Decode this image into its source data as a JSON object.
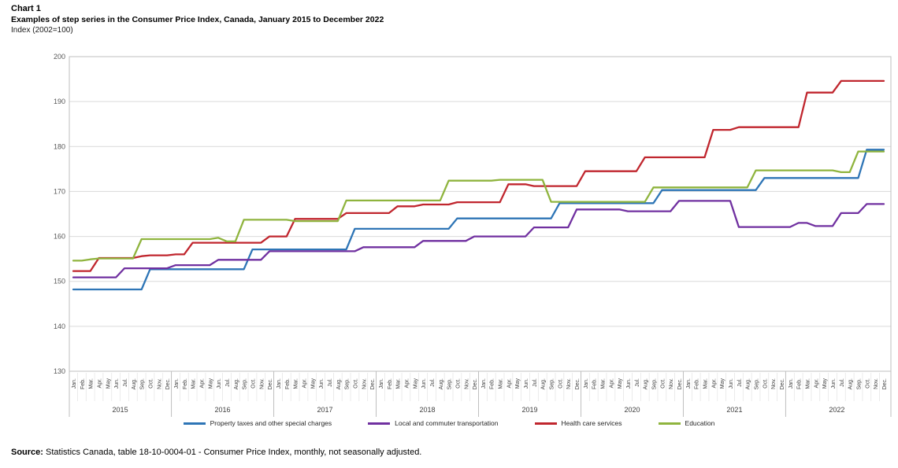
{
  "header": {
    "chart_label": "Chart 1",
    "title": "Examples of step series in the Consumer Price Index, Canada, January 2015 to December 2022",
    "index_note": "Index (2002=100)"
  },
  "footer": {
    "source_label": "Source:",
    "source_text": "Statistics Canada, table 18-10-0004-01 - Consumer Price Index, monthly, not seasonally adjusted."
  },
  "chart_data": {
    "type": "line",
    "step_style": true,
    "title": "Examples of step series in the Consumer Price Index, Canada, January 2015 to December 2022",
    "ylabel": "Index (2002=100)",
    "xlabel": "",
    "ylim": [
      130,
      200
    ],
    "yticks": [
      130,
      140,
      150,
      160,
      170,
      180,
      190,
      200
    ],
    "grid": "horizontal",
    "legend_position": "bottom",
    "x_years": [
      "2015",
      "2016",
      "2017",
      "2018",
      "2019",
      "2020",
      "2021",
      "2022"
    ],
    "x_month_labels": [
      "Jan.",
      "Feb.",
      "Mar.",
      "Apr.",
      "May",
      "Jun.",
      "Jul.",
      "Aug.",
      "Sep.",
      "Oct.",
      "Nov.",
      "Dec."
    ],
    "series": [
      {
        "name": "Property taxes and other special charges",
        "color": "#2E75B6",
        "values": [
          148.2,
          148.2,
          148.2,
          148.2,
          148.2,
          148.2,
          148.2,
          148.2,
          148.2,
          152.7,
          152.7,
          152.7,
          152.7,
          152.7,
          152.7,
          152.7,
          152.7,
          152.7,
          152.7,
          152.7,
          152.7,
          157.1,
          157.1,
          157.1,
          157.1,
          157.1,
          157.1,
          157.1,
          157.1,
          157.1,
          157.1,
          157.1,
          157.1,
          161.7,
          161.7,
          161.7,
          161.7,
          161.7,
          161.7,
          161.7,
          161.7,
          161.7,
          161.7,
          161.7,
          161.7,
          164.0,
          164.0,
          164.0,
          164.0,
          164.0,
          164.0,
          164.0,
          164.0,
          164.0,
          164.0,
          164.0,
          164.0,
          167.4,
          167.4,
          167.4,
          167.4,
          167.4,
          167.4,
          167.4,
          167.4,
          167.4,
          167.4,
          167.4,
          167.4,
          170.3,
          170.3,
          170.3,
          170.3,
          170.3,
          170.3,
          170.3,
          170.3,
          170.3,
          170.3,
          170.3,
          170.3,
          173.0,
          173.0,
          173.0,
          173.0,
          173.0,
          173.0,
          173.0,
          173.0,
          173.0,
          173.0,
          173.0,
          173.0,
          179.3,
          179.3,
          179.3
        ]
      },
      {
        "name": "Local and commuter transportation",
        "color": "#7030A0",
        "values": [
          150.9,
          150.9,
          150.9,
          150.9,
          150.9,
          150.9,
          152.9,
          152.9,
          152.9,
          152.9,
          152.9,
          152.9,
          153.6,
          153.6,
          153.6,
          153.6,
          153.6,
          154.8,
          154.8,
          154.8,
          154.8,
          154.8,
          154.8,
          156.7,
          156.7,
          156.7,
          156.7,
          156.7,
          156.7,
          156.7,
          156.7,
          156.7,
          156.7,
          156.7,
          157.6,
          157.6,
          157.6,
          157.6,
          157.6,
          157.6,
          157.6,
          159.0,
          159.0,
          159.0,
          159.0,
          159.0,
          159.0,
          160.0,
          160.0,
          160.0,
          160.0,
          160.0,
          160.0,
          160.0,
          162.0,
          162.0,
          162.0,
          162.0,
          162.0,
          166.0,
          166.0,
          166.0,
          166.0,
          166.0,
          166.0,
          165.6,
          165.6,
          165.6,
          165.6,
          165.6,
          165.6,
          167.9,
          167.9,
          167.9,
          167.9,
          167.9,
          167.9,
          167.9,
          162.1,
          162.1,
          162.1,
          162.1,
          162.1,
          162.1,
          162.1,
          163.0,
          163.0,
          162.3,
          162.3,
          162.3,
          165.2,
          165.2,
          165.2,
          167.2,
          167.2,
          167.2
        ]
      },
      {
        "name": "Health care services",
        "color": "#C0262E",
        "values": [
          152.3,
          152.3,
          152.3,
          155.2,
          155.2,
          155.2,
          155.2,
          155.2,
          155.6,
          155.8,
          155.8,
          155.8,
          156.0,
          156.0,
          158.6,
          158.6,
          158.6,
          158.6,
          158.6,
          158.6,
          158.6,
          158.6,
          158.6,
          160.0,
          160.0,
          160.0,
          163.9,
          163.9,
          163.9,
          163.9,
          163.9,
          163.9,
          165.2,
          165.2,
          165.2,
          165.2,
          165.2,
          165.2,
          166.7,
          166.7,
          166.7,
          167.1,
          167.1,
          167.1,
          167.1,
          167.6,
          167.6,
          167.6,
          167.6,
          167.6,
          167.6,
          171.6,
          171.6,
          171.6,
          171.2,
          171.2,
          171.2,
          171.2,
          171.2,
          171.2,
          174.5,
          174.5,
          174.5,
          174.5,
          174.5,
          174.5,
          174.5,
          177.6,
          177.6,
          177.6,
          177.6,
          177.6,
          177.6,
          177.6,
          177.6,
          183.7,
          183.7,
          183.7,
          184.3,
          184.3,
          184.3,
          184.3,
          184.3,
          184.3,
          184.3,
          184.3,
          192.0,
          192.0,
          192.0,
          192.0,
          194.6,
          194.6,
          194.6,
          194.6,
          194.6,
          194.6
        ]
      },
      {
        "name": "Education",
        "color": "#8FB43E",
        "values": [
          154.6,
          154.6,
          154.9,
          155.1,
          155.1,
          155.1,
          155.1,
          155.1,
          159.4,
          159.4,
          159.4,
          159.4,
          159.4,
          159.4,
          159.4,
          159.4,
          159.4,
          159.7,
          158.9,
          158.9,
          163.7,
          163.7,
          163.7,
          163.7,
          163.7,
          163.7,
          163.4,
          163.4,
          163.4,
          163.4,
          163.4,
          163.4,
          168.0,
          168.0,
          168.0,
          168.0,
          168.0,
          168.0,
          168.0,
          168.0,
          168.0,
          168.0,
          168.0,
          168.0,
          172.4,
          172.4,
          172.4,
          172.4,
          172.4,
          172.4,
          172.6,
          172.6,
          172.6,
          172.6,
          172.6,
          172.6,
          167.7,
          167.7,
          167.7,
          167.7,
          167.7,
          167.7,
          167.7,
          167.7,
          167.7,
          167.7,
          167.7,
          167.7,
          170.9,
          170.9,
          170.9,
          170.9,
          170.9,
          170.9,
          170.9,
          170.9,
          170.9,
          170.9,
          170.9,
          170.9,
          174.7,
          174.7,
          174.7,
          174.7,
          174.7,
          174.7,
          174.7,
          174.7,
          174.7,
          174.7,
          174.3,
          174.3,
          178.9,
          178.9,
          178.9,
          178.9
        ]
      }
    ]
  }
}
